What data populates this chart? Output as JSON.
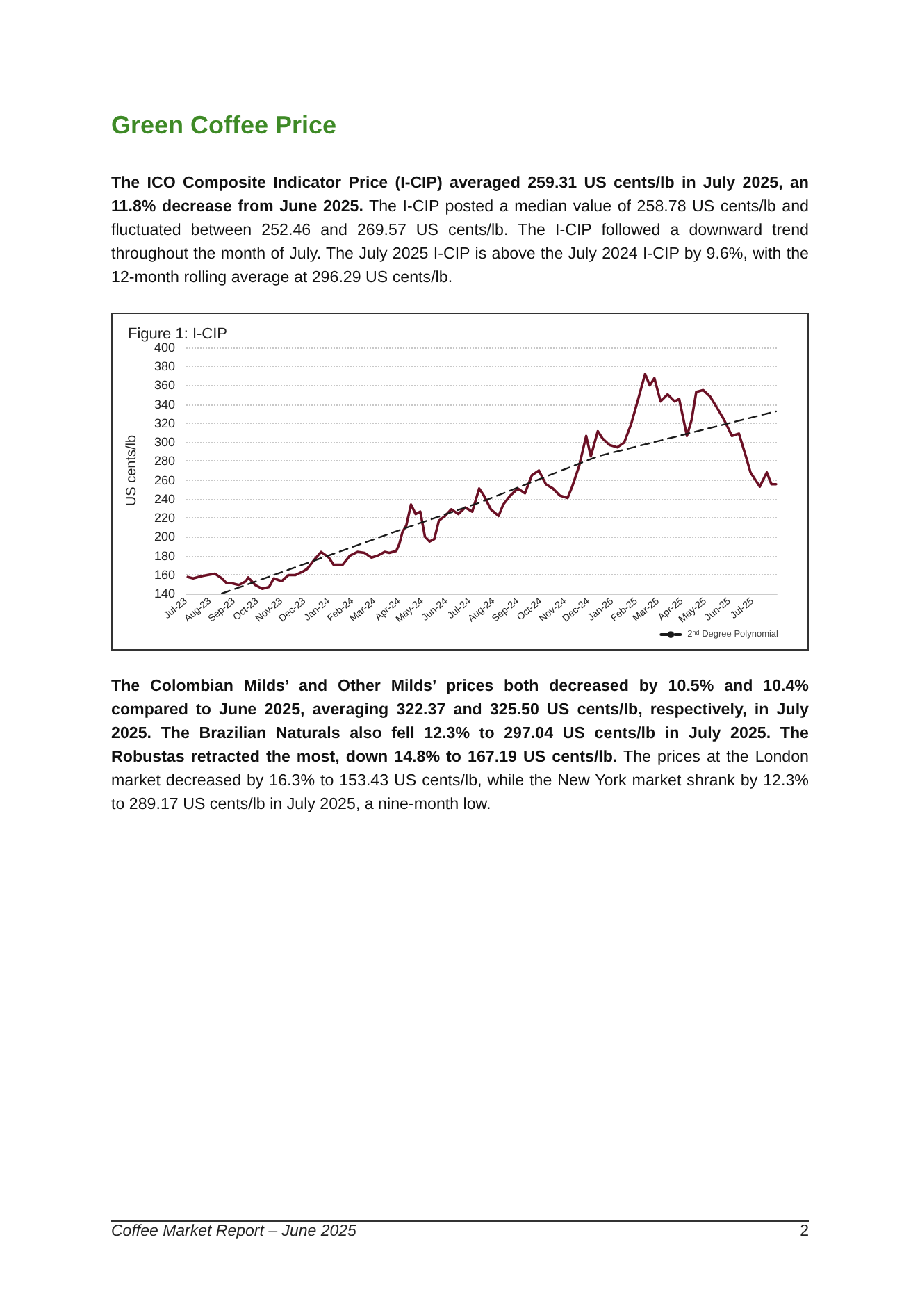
{
  "chart_data": {
    "type": "line",
    "title": "Green Coffee Price",
    "subtitle": "Figure 1: I-CIP",
    "ylabel": "US cents/lb",
    "annotations": [
      "The ICO Composite Indicator Price (I-CIP) averaged 259.31 US cents/lb in July 2025, an 11.8% decrease from June 2025.",
      "The I-CIP posted a median value of 258.78 US cents/lb and fluctuated between 252.46 and 269.57 US cents/lb. The I-CIP followed a downward trend throughout the month of July. The July 2025 I-CIP is above the July 2024 I-CIP by 9.6%, with the 12-month rolling average at 296.29 US cents/lb.",
      "The Colombian Milds’ and Other Milds’ prices both decreased by 10.5% and 10.4% compared to June 2025, averaging 322.37 and 325.50 US cents/lb, respectively, in July 2025. The Brazilian Naturals also fell 12.3% to 297.04 US cents/lb in July 2025. The Robustas retracted the most, down 14.8% to 167.19 US cents/lb.",
      "The prices at the London market decreased by 16.3% to 153.43 US cents/lb, while the New York market shrank by 12.3% to 289.17 US cents/lb in July 2025, a nine-month low.",
      "Coffee Market Report – June 2025",
      "2"
    ],
    "x": [
      "2023-07-03",
      "2023-07-10",
      "2023-07-19",
      "2023-07-28",
      "2023-08-07",
      "2023-08-16",
      "2023-08-22",
      "2023-08-28",
      "2023-09-07",
      "2023-09-16",
      "2023-09-19",
      "2023-09-28",
      "2023-10-07",
      "2023-10-16",
      "2023-10-22",
      "2023-11-01",
      "2023-11-10",
      "2023-11-19",
      "2023-11-28",
      "2023-12-04",
      "2023-12-13",
      "2023-12-22",
      "2024-01-01",
      "2024-01-07",
      "2024-01-19",
      "2024-01-28",
      "2024-02-07",
      "2024-02-16",
      "2024-02-25",
      "2024-03-04",
      "2024-03-13",
      "2024-03-19",
      "2024-03-28",
      "2024-04-01",
      "2024-04-05",
      "2024-04-10",
      "2024-04-16",
      "2024-04-22",
      "2024-04-28",
      "2024-05-04",
      "2024-05-10",
      "2024-05-16",
      "2024-05-22",
      "2024-05-30",
      "2024-06-07",
      "2024-06-16",
      "2024-06-25",
      "2024-07-04",
      "2024-07-13",
      "2024-07-19",
      "2024-07-28",
      "2024-08-07",
      "2024-08-13",
      "2024-08-22",
      "2024-09-01",
      "2024-09-10",
      "2024-09-19",
      "2024-09-28",
      "2024-10-07",
      "2024-10-16",
      "2024-10-25",
      "2024-11-04",
      "2024-11-10",
      "2024-11-19",
      "2024-11-28",
      "2024-12-04",
      "2024-12-13",
      "2024-12-19",
      "2024-12-28",
      "2025-01-07",
      "2025-01-16",
      "2025-01-25",
      "2025-02-04",
      "2025-02-12",
      "2025-02-18",
      "2025-02-24",
      "2025-03-04",
      "2025-03-13",
      "2025-03-22",
      "2025-03-28",
      "2025-04-07",
      "2025-04-13",
      "2025-04-19",
      "2025-04-28",
      "2025-05-07",
      "2025-05-16",
      "2025-05-25",
      "2025-06-04",
      "2025-06-13",
      "2025-06-22",
      "2025-06-28",
      "2025-07-10",
      "2025-07-19",
      "2025-07-25",
      "2025-07-31"
    ],
    "series": [
      {
        "color": "#6b1025",
        "values": [
          157.5,
          156,
          158,
          159.5,
          161,
          156,
          151,
          151,
          149,
          153,
          157,
          149,
          145,
          147,
          156,
          153,
          159.5,
          159.5,
          163,
          166,
          175.5,
          184,
          178,
          170.5,
          170.5,
          180,
          184,
          183,
          178,
          180,
          184,
          183,
          185,
          192.5,
          205,
          212,
          234,
          224,
          226.5,
          200,
          195,
          197.5,
          217,
          222,
          229,
          224,
          231,
          226.5,
          251,
          243.5,
          229,
          222,
          234,
          243.5,
          251,
          246,
          265,
          270,
          255.5,
          251,
          243.5,
          241,
          253,
          275,
          306.5,
          285,
          311.5,
          304,
          297,
          294.5,
          299.5,
          319,
          348,
          372,
          360,
          367.5,
          343,
          350.5,
          343,
          345.5,
          306.5,
          323.5,
          353,
          355,
          348,
          336,
          323.5,
          306.5,
          309,
          285,
          268,
          253,
          268,
          255.5,
          255.5
        ]
      },
      {
        "name": "2$^{nd}$ Degree Polynomial",
        "color": "#1a1a1a",
        "line_style": "dashed",
        "x": [
          "2023-08-16",
          "2024-04-10",
          "2024-07-13",
          "2024-12-13",
          "2025-07-31"
        ],
        "values": [
          140,
          209.5,
          236,
          285,
          332.5
        ]
      }
    ],
    "xlim": [
      "2023-07-01",
      "2025-08-01"
    ],
    "xticks": [
      {
        "value": "2023-07-01",
        "label": "Jul-23"
      },
      {
        "value": "2023-08-01",
        "label": "Aug-23"
      },
      {
        "value": "2023-09-01",
        "label": "Sep-23"
      },
      {
        "value": "2023-10-01",
        "label": "Oct-23"
      },
      {
        "value": "2023-11-01",
        "label": "Nov-23"
      },
      {
        "value": "2023-12-01",
        "label": "Dec-23"
      },
      {
        "value": "2024-01-01",
        "label": "Jan-24"
      },
      {
        "value": "2024-02-01",
        "label": "Feb-24"
      },
      {
        "value": "2024-03-01",
        "label": "Mar-24"
      },
      {
        "value": "2024-04-01",
        "label": "Apr-24"
      },
      {
        "value": "2024-05-01",
        "label": "May-24"
      },
      {
        "value": "2024-06-01",
        "label": "Jun-24"
      },
      {
        "value": "2024-07-01",
        "label": "Jul-24"
      },
      {
        "value": "2024-08-01",
        "label": "Aug-24"
      },
      {
        "value": "2024-09-01",
        "label": "Sep-24"
      },
      {
        "value": "2024-10-01",
        "label": "Oct-24"
      },
      {
        "value": "2024-11-01",
        "label": "Nov-24"
      },
      {
        "value": "2024-12-01",
        "label": "Dec-24"
      },
      {
        "value": "2025-01-01",
        "label": "Jan-25"
      },
      {
        "value": "2025-02-01",
        "label": "Feb-25"
      },
      {
        "value": "2025-03-01",
        "label": "Mar-25"
      },
      {
        "value": "2025-04-01",
        "label": "Apr-25"
      },
      {
        "value": "2025-05-01",
        "label": "May-25"
      },
      {
        "value": "2025-06-01",
        "label": "Jun-25"
      },
      {
        "value": "2025-07-01",
        "label": "Jul-25"
      }
    ],
    "ylim": [
      140,
      400
    ],
    "yticks": [
      140,
      160,
      180,
      200,
      220,
      240,
      260,
      280,
      300,
      320,
      340,
      360,
      380,
      400
    ],
    "grid": "y",
    "legend": "bottom right",
    "marker": "none",
    "line_style": "solid"
  }
}
